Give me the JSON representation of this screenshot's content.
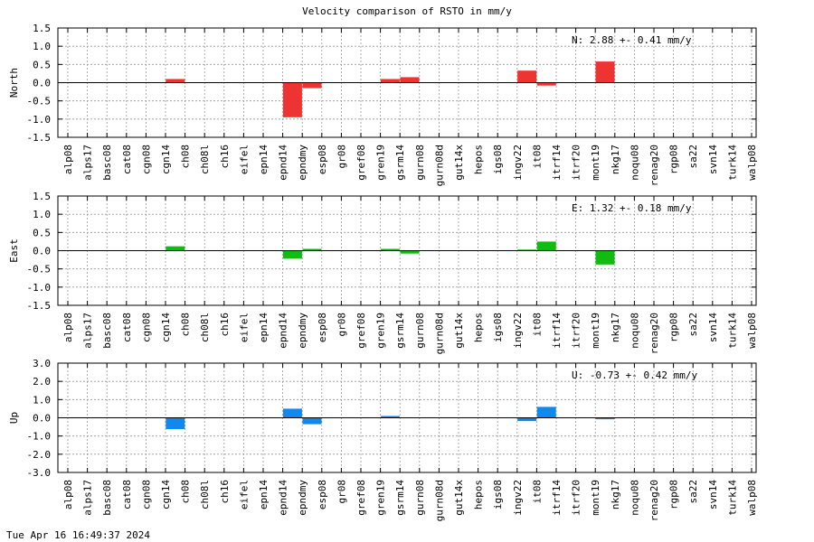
{
  "title": "Velocity comparison of RSTO in mm/y",
  "footer": "Tue Apr 16 16:49:37 2024",
  "chart_data": [
    {
      "type": "bar",
      "ylabel": "North",
      "ylim": [
        -1.5,
        1.5
      ],
      "yticks": [
        "1.5",
        "1.0",
        "0.5",
        "0.0",
        "-0.5",
        "-1.0",
        "-1.5"
      ],
      "grid": true,
      "annotation": "N:   2.88 +-  0.41 mm/y",
      "color": "#ee3333",
      "categories": [
        "alp08",
        "alps17",
        "basc08",
        "cat08",
        "cgn08",
        "cgn14",
        "ch08",
        "ch08l",
        "ch16",
        "eifel",
        "epn14",
        "epnd14",
        "epndmy",
        "esp08",
        "gr08",
        "gref08",
        "gren19",
        "gsrm14",
        "gurn08",
        "gurn08d",
        "gut14x",
        "hepos",
        "igs08",
        "ingv22",
        "it08",
        "itrf14",
        "itrf20",
        "mont19",
        "nkg17",
        "noqu08",
        "renag20",
        "rgp08",
        "sa22",
        "svn14",
        "turk14",
        "walp08"
      ],
      "values": [
        0,
        0,
        0,
        0,
        0,
        0.1,
        0,
        0,
        0,
        0,
        0,
        -0.95,
        -0.15,
        0,
        0,
        0,
        0.1,
        0.15,
        0,
        0,
        0,
        0,
        0,
        0.33,
        -0.08,
        0,
        0,
        0.58,
        0,
        0,
        0,
        0,
        0,
        0,
        0,
        0
      ]
    },
    {
      "type": "bar",
      "ylabel": "East",
      "ylim": [
        -1.5,
        1.5
      ],
      "yticks": [
        "1.5",
        "1.0",
        "0.5",
        "0.0",
        "-0.5",
        "-1.0",
        "-1.5"
      ],
      "grid": true,
      "annotation": "E:   1.32 +-  0.18 mm/y",
      "color": "#11bb11",
      "categories": [
        "alp08",
        "alps17",
        "basc08",
        "cat08",
        "cgn08",
        "cgn14",
        "ch08",
        "ch08l",
        "ch16",
        "eifel",
        "epn14",
        "epnd14",
        "epndmy",
        "esp08",
        "gr08",
        "gref08",
        "gren19",
        "gsrm14",
        "gurn08",
        "gurn08d",
        "gut14x",
        "hepos",
        "igs08",
        "ingv22",
        "it08",
        "itrf14",
        "itrf20",
        "mont19",
        "nkg17",
        "noqu08",
        "renag20",
        "rgp08",
        "sa22",
        "svn14",
        "turk14",
        "walp08"
      ],
      "values": [
        0,
        0,
        0,
        0,
        0,
        0.12,
        0,
        0,
        0,
        0,
        0,
        -0.22,
        0.05,
        0,
        0,
        0,
        0.05,
        -0.08,
        0,
        0,
        0,
        0,
        0,
        0.03,
        0.25,
        0,
        0,
        -0.38,
        0,
        0,
        0,
        0,
        0,
        0,
        0,
        0
      ]
    },
    {
      "type": "bar",
      "ylabel": "Up",
      "ylim": [
        -3.0,
        3.0
      ],
      "yticks": [
        "3.0",
        "2.0",
        "1.0",
        "0.0",
        "-1.0",
        "-2.0",
        "-3.0"
      ],
      "grid": true,
      "annotation": "U:  -0.73 +-  0.42 mm/y",
      "color": "#1188ee",
      "categories": [
        "alp08",
        "alps17",
        "basc08",
        "cat08",
        "cgn08",
        "cgn14",
        "ch08",
        "ch08l",
        "ch16",
        "eifel",
        "epn14",
        "epnd14",
        "epndmy",
        "esp08",
        "gr08",
        "gref08",
        "gren19",
        "gsrm14",
        "gurn08",
        "gurn08d",
        "gut14x",
        "hepos",
        "igs08",
        "ingv22",
        "it08",
        "itrf14",
        "itrf20",
        "mont19",
        "nkg17",
        "noqu08",
        "renag20",
        "rgp08",
        "sa22",
        "svn14",
        "turk14",
        "walp08"
      ],
      "values": [
        0,
        0,
        0,
        0,
        0,
        -0.62,
        0,
        0,
        0,
        0,
        0,
        0.5,
        -0.35,
        0,
        0,
        0,
        0.1,
        0,
        0,
        0,
        0,
        0,
        0,
        -0.18,
        0.6,
        0,
        0,
        -0.08,
        0,
        0,
        0,
        0,
        0,
        0,
        0,
        0
      ]
    }
  ]
}
